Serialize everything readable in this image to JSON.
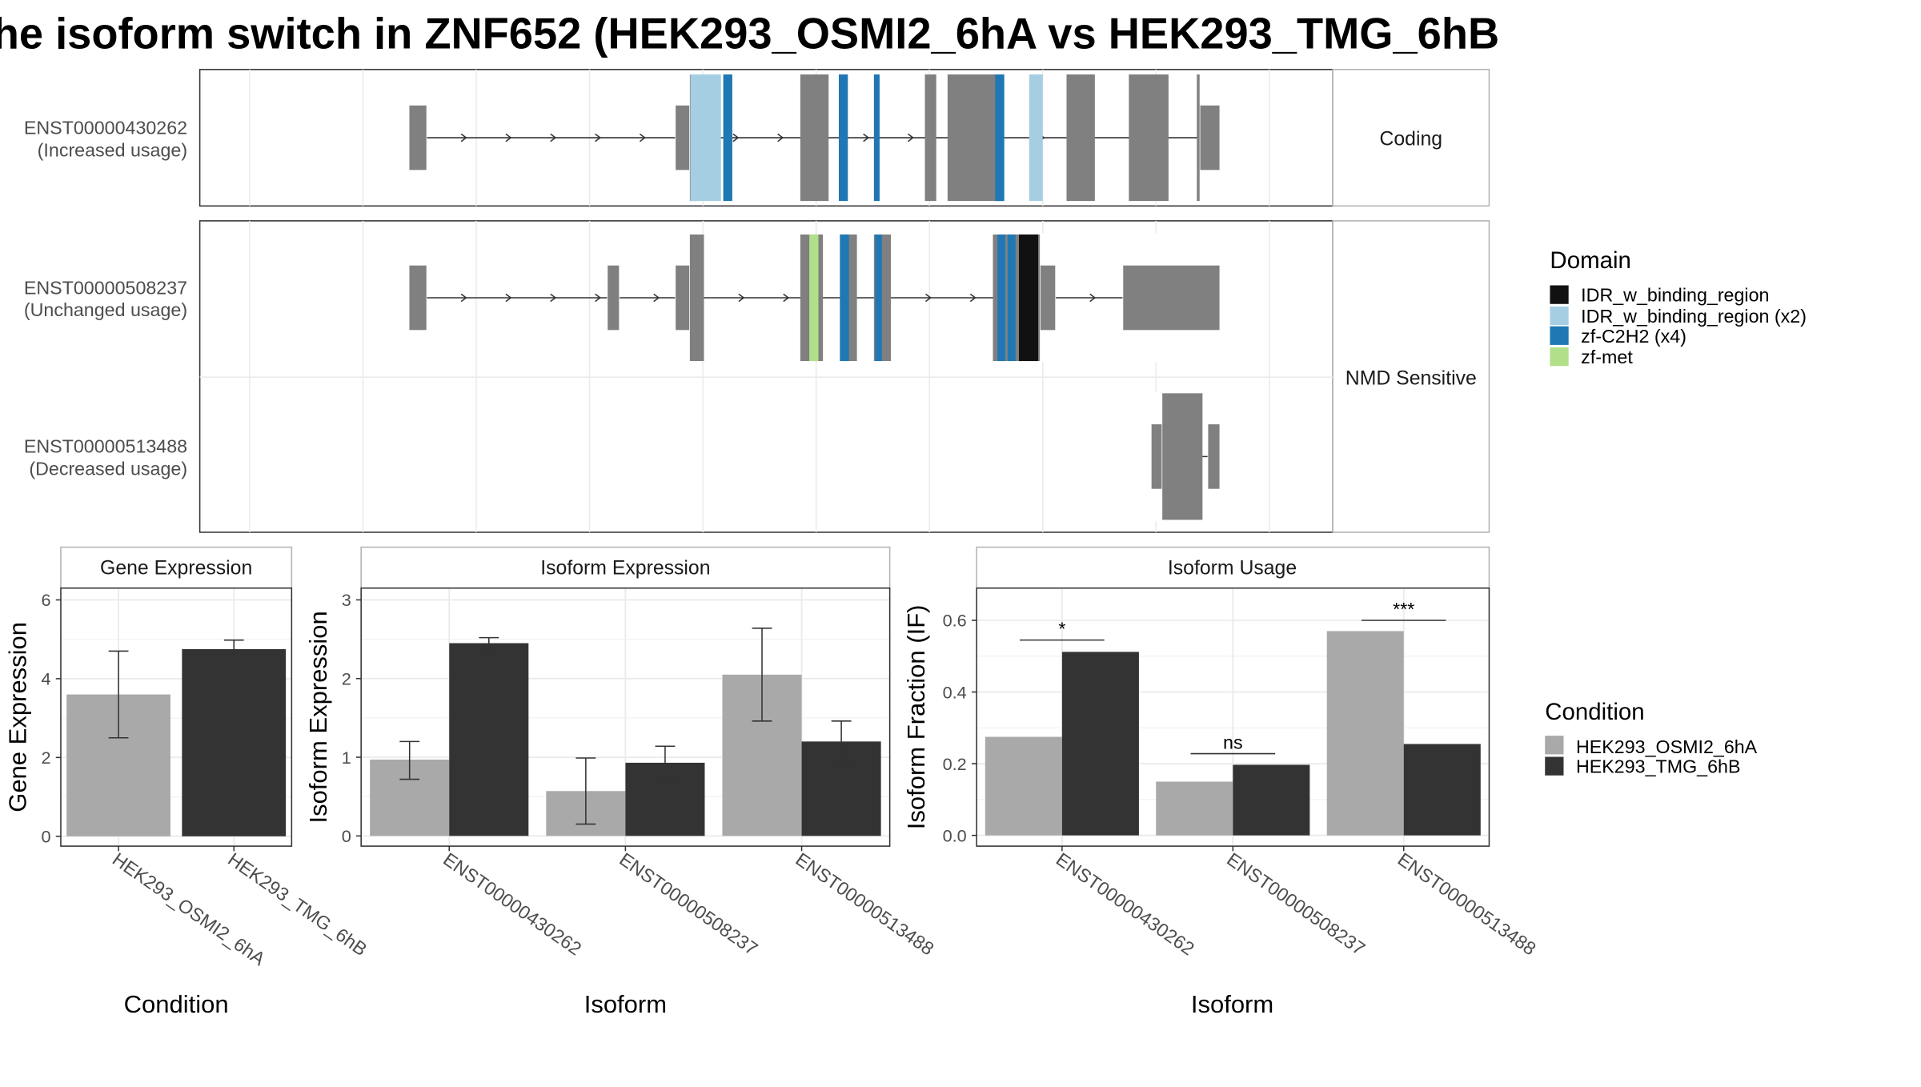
{
  "title": "he isoform switch in ZNF652 (HEK293_OSMI2_6hA vs HEK293_TMG_6hB",
  "colors": {
    "condition_a": "#a9a9a9",
    "condition_b": "#333333",
    "exon": "#808080",
    "strip_border": "#b3b3b3",
    "grid": "#ebebeb"
  },
  "transcripts": {
    "groups": [
      {
        "label": "Coding",
        "rows": [
          {
            "id": "ENST00000430262",
            "usage": "(Increased usage)",
            "exons": [
              [
                18.5,
                20
              ],
              [
                42,
                44
              ],
              [
                53,
                55.5
              ],
              [
                64,
                65
              ],
              [
                66,
                71
              ],
              [
                76.5,
                79
              ],
              [
                82,
                85.5
              ],
              [
                88,
                90
              ]
            ],
            "utr": [
              [
                18.5,
                20
              ],
              [
                42,
                43.2
              ],
              [
                88.3,
                90
              ]
            ],
            "domains": [
              {
                "domain": "IDR_w_binding_region (x2)",
                "start": 43.3,
                "end": 46
              },
              {
                "domain": "zf-C2H2 (x4)",
                "start": 46.2,
                "end": 47
              },
              {
                "domain": "zf-C2H2 (x4)",
                "start": 56.4,
                "end": 57.2
              },
              {
                "domain": "zf-C2H2 (x4)",
                "start": 59.5,
                "end": 60
              },
              {
                "domain": "zf-C2H2 (x4)",
                "start": 70.2,
                "end": 71
              },
              {
                "domain": "IDR_w_binding_region (x2)",
                "start": 73.2,
                "end": 74.4
              }
            ]
          }
        ]
      },
      {
        "label": "NMD Sensitive",
        "rows": [
          {
            "id": "ENST00000508237",
            "usage": "(Unchanged usage)",
            "exons": [
              [
                18.5,
                20
              ],
              [
                36,
                37
              ],
              [
                42,
                44.5
              ],
              [
                53,
                55
              ],
              [
                56.5,
                58
              ],
              [
                59.5,
                61
              ],
              [
                70,
                75.5
              ],
              [
                81.5,
                90
              ]
            ],
            "utr": [
              [
                18.5,
                20
              ],
              [
                36,
                37
              ],
              [
                42,
                43.2
              ],
              [
                74.2,
                75.5
              ],
              [
                81.5,
                90
              ]
            ],
            "domains": [
              {
                "domain": "zf-met",
                "start": 53.8,
                "end": 54.6
              },
              {
                "domain": "zf-C2H2 (x4)",
                "start": 56.5,
                "end": 57.3
              },
              {
                "domain": "zf-C2H2 (x4)",
                "start": 59.6,
                "end": 60.2
              },
              {
                "domain": "zf-C2H2 (x4)",
                "start": 70.4,
                "end": 71.1
              },
              {
                "domain": "zf-C2H2 (x4)",
                "start": 71.3,
                "end": 72
              },
              {
                "domain": "IDR_w_binding_region",
                "start": 72.3,
                "end": 74
              }
            ]
          },
          {
            "id": "ENST00000513488",
            "usage": "(Decreased usage)",
            "exons": [
              [
                84,
                88.5
              ],
              [
                89,
                90
              ]
            ],
            "utr": [
              [
                84,
                84.9
              ],
              [
                89,
                90
              ]
            ],
            "domains": []
          }
        ]
      }
    ]
  },
  "legends": {
    "domain": {
      "title": "Domain",
      "items": [
        {
          "label": "IDR_w_binding_region",
          "color": "#111111"
        },
        {
          "label": "IDR_w_binding_region (x2)",
          "color": "#a6cee3"
        },
        {
          "label": "zf-C2H2 (x4)",
          "color": "#1f78b4"
        },
        {
          "label": "zf-met",
          "color": "#b2df8a"
        }
      ]
    },
    "condition": {
      "title": "Condition",
      "items": [
        {
          "label": "HEK293_OSMI2_6hA",
          "color": "#a9a9a9"
        },
        {
          "label": "HEK293_TMG_6hB",
          "color": "#333333"
        }
      ]
    }
  },
  "chart_data": [
    {
      "type": "bar",
      "title": "Gene Expression",
      "xlabel": "Condition",
      "ylabel": "Gene Expression",
      "categories": [
        "HEK293_OSMI2_6hA",
        "HEK293_TMG_6hB"
      ],
      "values": [
        3.6,
        4.75
      ],
      "error_low": [
        2.5,
        4.5
      ],
      "error_high": [
        4.7,
        4.98
      ],
      "ylim": [
        -0.25,
        6.3
      ],
      "yticks": [
        0,
        2,
        4,
        6
      ],
      "grid": true
    },
    {
      "type": "bar",
      "title": "Isoform Expression",
      "xlabel": "Isoform",
      "ylabel": "Isoform Expression",
      "categories": [
        "ENST00000430262",
        "ENST00000508237",
        "ENST00000513488"
      ],
      "series": [
        {
          "name": "HEK293_OSMI2_6hA",
          "values": [
            0.97,
            0.57,
            2.05
          ],
          "error_low": [
            0.72,
            0.15,
            1.46
          ],
          "error_high": [
            1.2,
            0.99,
            2.64
          ]
        },
        {
          "name": "HEK293_TMG_6hB",
          "values": [
            2.45,
            0.93,
            1.2
          ],
          "error_low": [
            2.38,
            0.73,
            0.94
          ],
          "error_high": [
            2.52,
            1.14,
            1.46
          ]
        }
      ],
      "ylim": [
        -0.13,
        3.15
      ],
      "yticks": [
        0,
        1,
        2,
        3
      ],
      "grid": true
    },
    {
      "type": "bar",
      "title": "Isoform Usage",
      "xlabel": "Isoform",
      "ylabel": "Isoform Fraction (IF)",
      "categories": [
        "ENST00000430262",
        "ENST00000508237",
        "ENST00000513488"
      ],
      "series": [
        {
          "name": "HEK293_OSMI2_6hA",
          "values": [
            0.275,
            0.15,
            0.57
          ]
        },
        {
          "name": "HEK293_TMG_6hB",
          "values": [
            0.512,
            0.197,
            0.255
          ]
        }
      ],
      "significance": [
        {
          "category": "ENST00000430262",
          "label": "*",
          "y": 0.545
        },
        {
          "category": "ENST00000508237",
          "label": "ns",
          "y": 0.228
        },
        {
          "category": "ENST00000513488",
          "label": "***",
          "y": 0.6
        }
      ],
      "ylim": [
        -0.03,
        0.69
      ],
      "yticks": [
        0.0,
        0.2,
        0.4,
        0.6
      ],
      "ytick_labels": [
        "0.0",
        "0.2",
        "0.4",
        "0.6"
      ],
      "grid": true
    }
  ]
}
